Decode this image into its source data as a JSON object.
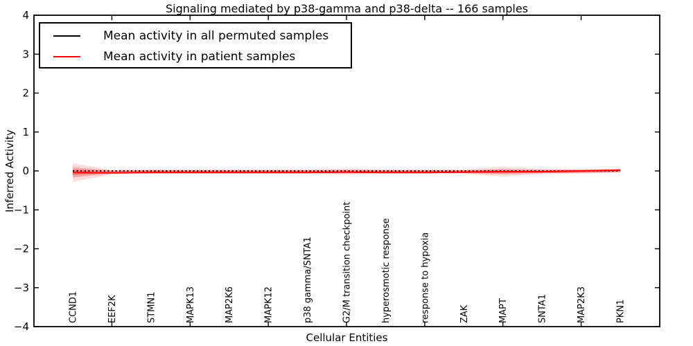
{
  "figure": {
    "title": "Signaling mediated by p38-gamma and p38-delta -- 166 samples"
  },
  "chart_data": {
    "type": "line",
    "title": "Signaling mediated by p38-gamma and p38-delta -- 166 samples",
    "xlabel": "Cellular Entities",
    "ylabel": "Inferred Activity",
    "ylim": [
      -4,
      4
    ],
    "yticks": [
      -4,
      -3,
      -2,
      -1,
      0,
      1,
      2,
      3,
      4
    ],
    "xtick_indices": [
      1,
      3,
      5,
      7,
      9,
      11,
      13
    ],
    "grid": false,
    "frame_color": "#000000",
    "band_color": "#ff0000",
    "legend": {
      "position": "upper left",
      "entries": [
        {
          "label": "Mean activity in all permuted samples",
          "color": "#000000",
          "style": "dotted"
        },
        {
          "label": "Mean activity in patient samples",
          "color": "#ff0000",
          "style": "solid"
        }
      ]
    },
    "categories": [
      "CCND1",
      "EEF2K",
      "STMN1",
      "MAPK13",
      "MAP2K6",
      "MAPK12",
      "p38 gamma/SNTA1",
      "G2/M transition checkpoint",
      "hyperosmotic response",
      "response to hypoxia",
      "ZAK",
      "MAPT",
      "SNTA1",
      "MAP2K3",
      "PKN1"
    ],
    "series": [
      {
        "name": "Mean activity in all permuted samples",
        "color": "#000000",
        "line_style": "dotted",
        "values": [
          0,
          0,
          0,
          0,
          0,
          0,
          0,
          0,
          0,
          0,
          0,
          0,
          0,
          0,
          0
        ]
      },
      {
        "name": "Mean activity in patient samples",
        "color": "#ff0000",
        "line_style": "solid",
        "values": [
          -0.04,
          -0.05,
          -0.04,
          -0.04,
          -0.04,
          -0.04,
          -0.04,
          -0.03,
          -0.04,
          -0.04,
          -0.03,
          -0.02,
          -0.02,
          0.0,
          0.02
        ]
      }
    ],
    "bands": [
      {
        "name": "outer",
        "opacity": 0.14,
        "upper": [
          0.19,
          0.03,
          0.04,
          0.04,
          0.04,
          0.04,
          0.04,
          0.06,
          0.04,
          0.04,
          0.04,
          0.1,
          0.05,
          0.05,
          0.06
        ],
        "lower": [
          -0.28,
          -0.09,
          -0.08,
          -0.08,
          -0.08,
          -0.08,
          -0.08,
          -0.1,
          -0.08,
          -0.08,
          -0.08,
          -0.14,
          -0.08,
          -0.07,
          -0.05
        ]
      },
      {
        "name": "mid",
        "opacity": 0.2,
        "upper": [
          0.1,
          0.01,
          0.02,
          0.02,
          0.02,
          0.02,
          0.02,
          0.03,
          0.02,
          0.02,
          0.02,
          0.05,
          0.03,
          0.03,
          0.04
        ],
        "lower": [
          -0.17,
          -0.07,
          -0.06,
          -0.06,
          -0.06,
          -0.06,
          -0.06,
          -0.07,
          -0.06,
          -0.06,
          -0.06,
          -0.09,
          -0.06,
          -0.05,
          -0.03
        ]
      },
      {
        "name": "inner",
        "opacity": 0.3,
        "upper": [
          0.04,
          0.0,
          0.01,
          0.01,
          0.01,
          0.01,
          0.01,
          0.01,
          0.01,
          0.01,
          0.01,
          0.02,
          0.01,
          0.02,
          0.03
        ],
        "lower": [
          -0.11,
          -0.06,
          -0.05,
          -0.05,
          -0.05,
          -0.05,
          -0.05,
          -0.05,
          -0.05,
          -0.05,
          -0.05,
          -0.06,
          -0.05,
          -0.04,
          -0.02
        ]
      }
    ]
  }
}
